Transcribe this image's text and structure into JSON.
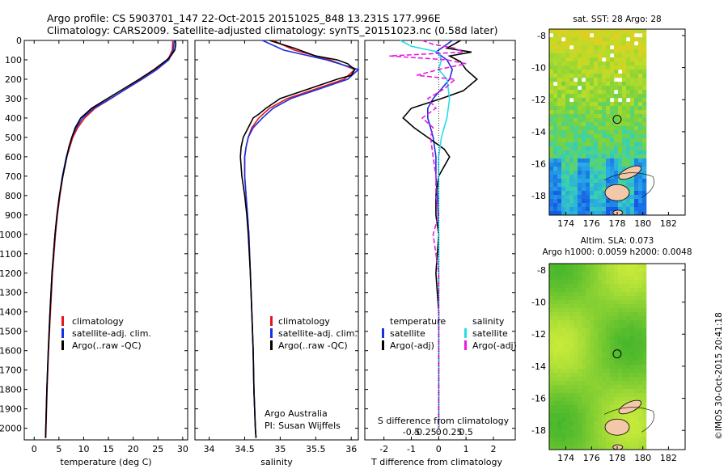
{
  "header": {
    "line1": "Argo profile: CS 5903701_147 22-Oct-2015 20151025_848 13.231S 177.996E",
    "line2": "Climatology: CARS2009. Satellite-adjusted climatology: synTS_20151023.nc (0.58d later)"
  },
  "credit": "©IMOS 30-Oct-2015 20:41:18",
  "colors": {
    "climatology": "#e8161b",
    "satellite": "#1a2fe0",
    "argo": "#000000",
    "sat_salinity": "#28dce8",
    "argo_salinity": "#e81ce0",
    "land": "#f2c8a8"
  },
  "chart_data": [
    {
      "type": "line",
      "name": "temperature-panel",
      "xlabel": "temperature (deg C)",
      "ylabel": "",
      "xlim": [
        -2,
        31
      ],
      "ylim": [
        2060,
        0
      ],
      "xticks": [
        0,
        5,
        10,
        15,
        20,
        25,
        30
      ],
      "yticks": [
        0,
        100,
        200,
        300,
        400,
        500,
        600,
        700,
        800,
        900,
        1000,
        1100,
        1200,
        1300,
        1400,
        1500,
        1600,
        1700,
        1800,
        1900,
        2000
      ],
      "legend": {
        "placement": "lower-center",
        "entries": [
          "climatology",
          "satellite-adj. clim.",
          "Argo(..raw -QC)"
        ]
      },
      "series": [
        {
          "key": "climatology",
          "depth": [
            0,
            50,
            100,
            150,
            200,
            250,
            300,
            350,
            400,
            450,
            500,
            600,
            700,
            800,
            900,
            1000,
            1200,
            1400,
            1600,
            1800,
            2000,
            2050
          ],
          "values": [
            28.0,
            27.9,
            27.0,
            24.5,
            21.5,
            18.5,
            15.5,
            12.3,
            10.2,
            8.8,
            7.8,
            6.6,
            5.8,
            5.2,
            4.7,
            4.3,
            3.7,
            3.3,
            2.9,
            2.6,
            2.4,
            2.35
          ]
        },
        {
          "key": "satellite",
          "depth": [
            0,
            50,
            100,
            150,
            200,
            250,
            300,
            350,
            400,
            450,
            500,
            600,
            700,
            800,
            900,
            1000,
            1200,
            1400,
            1600,
            1800,
            2000,
            2050
          ],
          "values": [
            28.3,
            28.1,
            27.2,
            24.8,
            21.8,
            18.6,
            15.4,
            12.0,
            9.8,
            8.5,
            7.6,
            6.5,
            5.7,
            5.1,
            4.6,
            4.2,
            3.6,
            3.2,
            2.85,
            2.55,
            2.35,
            2.3
          ]
        },
        {
          "key": "argo",
          "depth": [
            0,
            20,
            50,
            80,
            100,
            150,
            200,
            250,
            300,
            350,
            380,
            400,
            450,
            500,
            550,
            600,
            700,
            800,
            900,
            1000,
            1200,
            1400,
            1600,
            1800,
            2000,
            2050
          ],
          "values": [
            28.5,
            28.6,
            28.4,
            27.6,
            26.8,
            24.2,
            21.2,
            18.0,
            14.8,
            11.6,
            10.3,
            9.4,
            8.3,
            7.6,
            7.0,
            6.6,
            5.8,
            5.1,
            4.6,
            4.2,
            3.6,
            3.2,
            2.85,
            2.55,
            2.35,
            2.3
          ]
        }
      ]
    },
    {
      "type": "line",
      "name": "salinity-panel",
      "xlabel": "salinity",
      "ylabel": "",
      "xlim": [
        33.8,
        36.1
      ],
      "ylim": [
        2060,
        0
      ],
      "xticks": [
        34,
        34.5,
        35,
        35.5,
        36
      ],
      "legend": {
        "placement": "lower-center",
        "entries": [
          "climatology",
          "satellite-adj. clim.",
          "Argo(..raw -QC)"
        ]
      },
      "annotation": [
        "Argo Australia",
        "PI: Susan Wijffels"
      ],
      "series": [
        {
          "key": "climatology",
          "depth": [
            0,
            50,
            100,
            150,
            200,
            250,
            300,
            350,
            400,
            450,
            500,
            550,
            600,
            700,
            800,
            900,
            1000,
            1200,
            1400,
            1600,
            1800,
            2000,
            2050
          ],
          "values": [
            34.9,
            35.2,
            35.7,
            36.05,
            35.9,
            35.5,
            35.1,
            34.85,
            34.7,
            34.6,
            34.55,
            34.52,
            34.5,
            34.5,
            34.52,
            34.54,
            34.56,
            34.58,
            34.6,
            34.62,
            34.63,
            34.65,
            34.66
          ]
        },
        {
          "key": "satellite",
          "depth": [
            0,
            50,
            100,
            150,
            200,
            250,
            300,
            350,
            400,
            450,
            500,
            550,
            600,
            700,
            800,
            900,
            1000,
            1200,
            1400,
            1600,
            1800,
            2000,
            2050
          ],
          "values": [
            34.75,
            35.05,
            35.65,
            36.1,
            35.95,
            35.55,
            35.15,
            34.9,
            34.75,
            34.62,
            34.55,
            34.52,
            34.5,
            34.5,
            34.52,
            34.54,
            34.56,
            34.58,
            34.6,
            34.62,
            34.63,
            34.65,
            34.66
          ]
        },
        {
          "key": "argo",
          "depth": [
            0,
            40,
            80,
            100,
            120,
            150,
            180,
            200,
            250,
            300,
            350,
            380,
            400,
            450,
            500,
            550,
            600,
            700,
            800,
            900,
            1000,
            1200,
            1400,
            1600,
            1800,
            2000,
            2050
          ],
          "values": [
            34.85,
            35.2,
            35.5,
            35.8,
            35.95,
            36.05,
            36.0,
            35.8,
            35.4,
            35.0,
            34.8,
            34.7,
            34.62,
            34.55,
            34.48,
            34.45,
            34.44,
            34.46,
            34.5,
            34.53,
            34.55,
            34.58,
            34.6,
            34.62,
            34.63,
            34.65,
            34.66
          ]
        }
      ]
    },
    {
      "type": "line",
      "name": "difference-panel",
      "xlabel": "T difference from climatology",
      "x2label": "S difference from climatology",
      "xlim": [
        -2.7,
        2.8
      ],
      "ylim": [
        2060,
        0
      ],
      "xticks": [
        -2,
        -1,
        0,
        1,
        2
      ],
      "x2ticks": [
        "-0.5",
        "-0.25",
        "0",
        "0.25",
        "0.5"
      ],
      "legend": {
        "placement": "lower-center",
        "temperature": [
          "temperature",
          "satellite",
          "Argo(-adj)"
        ],
        "salinity": [
          "salinity",
          "satellite",
          "Argo(-adj)"
        ]
      },
      "series": [
        {
          "key": "satellite",
          "depth": [
            0,
            30,
            60,
            100,
            150,
            200,
            250,
            300,
            350,
            400,
            450,
            500,
            600,
            700,
            800,
            1000,
            1400,
            2000
          ],
          "values": [
            0.5,
            0.2,
            -0.1,
            0.3,
            0.5,
            0.4,
            0.1,
            -0.2,
            -0.4,
            -0.4,
            -0.3,
            -0.2,
            -0.1,
            -0.1,
            -0.05,
            0,
            0,
            0
          ]
        },
        {
          "key": "argo",
          "depth": [
            0,
            40,
            60,
            80,
            110,
            150,
            200,
            260,
            300,
            350,
            400,
            450,
            500,
            560,
            600,
            700,
            800,
            900,
            1000,
            1200,
            1400,
            2000
          ],
          "values": [
            0.8,
            0.3,
            1.2,
            0.4,
            0.8,
            1.0,
            1.4,
            0.9,
            0.1,
            -1.0,
            -1.3,
            -0.9,
            -0.4,
            0.2,
            0.4,
            0.0,
            -0.1,
            -0.1,
            0.0,
            -0.1,
            0.0,
            0.0
          ]
        },
        {
          "key": "sat_salinity",
          "depth": [
            0,
            30,
            60,
            100,
            150,
            200,
            300,
            400,
            500,
            600,
            700,
            800,
            1000,
            1400,
            2000
          ],
          "values": [
            -1.4,
            -1.0,
            0.0,
            0.1,
            0.0,
            0.3,
            0.4,
            0.3,
            0.1,
            0.0,
            0.0,
            0.0,
            0.0,
            0.0,
            0.0
          ]
        },
        {
          "key": "argo_salinity",
          "depth": [
            0,
            20,
            40,
            60,
            80,
            100,
            120,
            150,
            180,
            200,
            250,
            300,
            350,
            400,
            450,
            500,
            600,
            700,
            800,
            900,
            1000,
            1200,
            1400,
            2000
          ],
          "values": [
            -0.6,
            -0.2,
            0.6,
            0.9,
            -1.8,
            0.3,
            1.0,
            0.0,
            -0.8,
            0.6,
            0.2,
            -0.4,
            -0.1,
            -0.6,
            -0.2,
            -0.3,
            -0.2,
            -0.1,
            -0.1,
            0.0,
            -0.2,
            0.0,
            0.0,
            0.0
          ]
        }
      ]
    },
    {
      "type": "heatmap",
      "name": "sst-map",
      "title": "sat. SST: 28 Argo: 28",
      "xticks": [
        "174",
        "176",
        "178",
        "180",
        "182"
      ],
      "yticks": [
        "-8",
        "-10",
        "-12",
        "-14",
        "-16",
        "-18"
      ],
      "xlim": [
        172.7,
        183.3
      ],
      "ylim": [
        -19.2,
        -7.6
      ],
      "marker": [
        177.996,
        -13.231
      ]
    },
    {
      "type": "heatmap",
      "name": "sla-map",
      "title_line1": "Altim. SLA: 0.073",
      "title_line2": "Argo h1000: 0.0059 h2000: 0.0048",
      "xticks": [
        "174",
        "176",
        "178",
        "180",
        "182"
      ],
      "yticks": [
        "-8",
        "-10",
        "-12",
        "-14",
        "-16",
        "-18"
      ],
      "xlim": [
        172.7,
        183.3
      ],
      "ylim": [
        -19.2,
        -7.6
      ],
      "marker": [
        177.996,
        -13.231
      ]
    }
  ]
}
